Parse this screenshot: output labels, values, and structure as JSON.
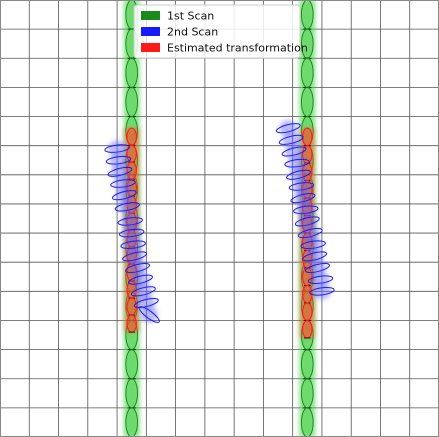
{
  "chart_data": {
    "type": "scatter",
    "title": "",
    "xlabel": "",
    "ylabel": "",
    "xlim": [
      0,
      15
    ],
    "ylim": [
      0,
      15
    ],
    "grid": true,
    "legend": {
      "placement": "top-center",
      "entries": [
        {
          "label": "1st Scan",
          "color": "#1a8a1a"
        },
        {
          "label": "2nd Scan",
          "color": "#1a1aff"
        },
        {
          "label": "Estimated transformation",
          "color": "#ff1a1a"
        }
      ]
    },
    "series": [
      {
        "name": "1st Scan",
        "color": "#1a8a1a",
        "fill": "#33cc33",
        "walls": [
          {
            "x_center": 4.5,
            "y_range": [
              0,
              15
            ],
            "ellipse_count": 15
          },
          {
            "x_center": 10.5,
            "y_range": [
              0,
              15
            ],
            "ellipse_count": 15
          }
        ]
      },
      {
        "name": "2nd Scan",
        "color": "#1a1aff",
        "fill": "#6666ff",
        "points": [
          [
            4.0,
            9.9
          ],
          [
            4.05,
            9.5
          ],
          [
            4.1,
            9.1
          ],
          [
            4.2,
            8.7
          ],
          [
            4.25,
            8.3
          ],
          [
            4.35,
            7.9
          ],
          [
            4.45,
            7.4
          ],
          [
            4.5,
            7.0
          ],
          [
            4.55,
            6.6
          ],
          [
            4.6,
            6.2
          ],
          [
            4.7,
            5.8
          ],
          [
            4.8,
            5.4
          ],
          [
            4.9,
            5.0
          ],
          [
            5.0,
            4.6
          ],
          [
            5.1,
            4.2
          ],
          [
            9.85,
            10.6
          ],
          [
            9.95,
            10.2
          ],
          [
            10.05,
            9.8
          ],
          [
            10.15,
            9.4
          ],
          [
            10.2,
            9.0
          ],
          [
            10.3,
            8.6
          ],
          [
            10.35,
            8.2
          ],
          [
            10.45,
            7.8
          ],
          [
            10.5,
            7.4
          ],
          [
            10.6,
            7.0
          ],
          [
            10.7,
            6.6
          ],
          [
            10.75,
            6.2
          ],
          [
            10.85,
            5.8
          ],
          [
            10.95,
            5.4
          ],
          [
            11.0,
            5.0
          ]
        ]
      },
      {
        "name": "Estimated transformation",
        "color": "#ff1a1a",
        "fill": "#ff4d2e",
        "walls": [
          {
            "x_center": 4.5,
            "y_range": [
              3.6,
              10.6
            ],
            "ellipse_count": 12
          },
          {
            "x_center": 10.5,
            "y_range": [
              3.4,
              10.6
            ],
            "ellipse_count": 12
          }
        ]
      }
    ]
  }
}
